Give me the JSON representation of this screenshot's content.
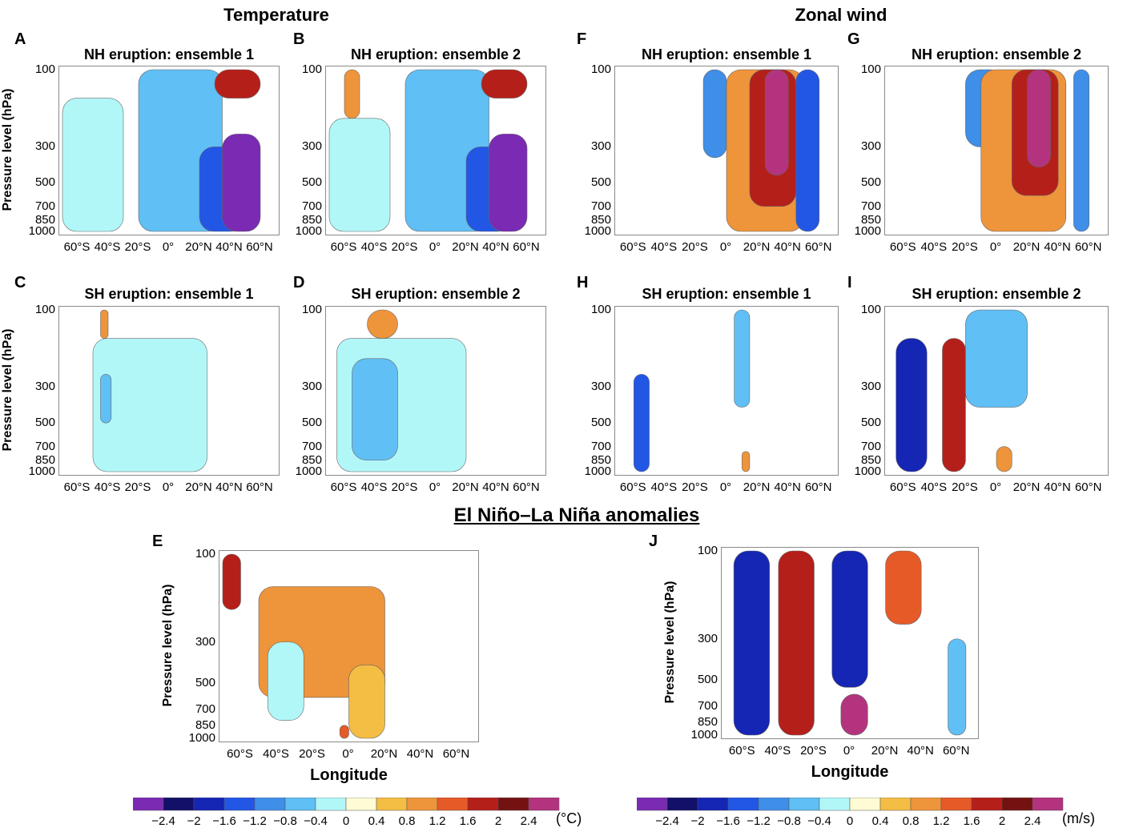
{
  "headings": {
    "temperature": "Temperature",
    "zonal_wind": "Zonal wind",
    "enso": "El Niño–La Niña anomalies"
  },
  "colorbar": {
    "colors": [
      "#7b2ab3",
      "#121068",
      "#1525b4",
      "#2257e6",
      "#3f8ee8",
      "#60bff4",
      "#b2f7f8",
      "#fffbd4",
      "#f4bd43",
      "#ee943a",
      "#e65a28",
      "#b51f1a",
      "#741212",
      "#b3337e"
    ],
    "ticks": [
      "−2.4",
      "−2",
      "−1.6",
      "−1.2",
      "−0.8",
      "−0.4",
      "0",
      "0.4",
      "0.8",
      "1.2",
      "1.6",
      "2",
      "2.4"
    ],
    "unit_temperature": "(°C)",
    "unit_wind": "(m/s)"
  },
  "chart_data": [
    {
      "panel": "A",
      "type": "heatmap",
      "field": "Temperature",
      "title": "NH eruption: ensemble 1",
      "ylabel": "Pressure level (hPa)",
      "yticks": [
        "100",
        "300",
        "500",
        "700",
        "850",
        "1000"
      ],
      "xticks": [
        "60°S",
        "40°S",
        "20°S",
        "0°",
        "20°N",
        "40°N",
        "60°N"
      ],
      "regions": [
        {
          "x": [
            -70,
            -30
          ],
          "p": [
            150,
            1000
          ],
          "value": -0.4
        },
        {
          "x": [
            -20,
            35
          ],
          "p": [
            100,
            1000
          ],
          "value": -0.8
        },
        {
          "x": [
            20,
            50
          ],
          "p": [
            300,
            1000
          ],
          "value": -1.6
        },
        {
          "x": [
            35,
            60
          ],
          "p": [
            250,
            1000
          ],
          "value": -2.4
        },
        {
          "x": [
            30,
            60
          ],
          "p": [
            100,
            150
          ],
          "value": 1.6
        }
      ]
    },
    {
      "panel": "B",
      "type": "heatmap",
      "field": "Temperature",
      "title": "NH eruption: ensemble 2",
      "ylabel": "",
      "yticks": [
        "100",
        "300",
        "500",
        "700",
        "850",
        "1000"
      ],
      "xticks": [
        "60°S",
        "40°S",
        "20°S",
        "0°",
        "20°N",
        "40°N",
        "60°N"
      ],
      "regions": [
        {
          "x": [
            -70,
            -30
          ],
          "p": [
            200,
            1000
          ],
          "value": -0.4
        },
        {
          "x": [
            -20,
            35
          ],
          "p": [
            100,
            1000
          ],
          "value": -0.8
        },
        {
          "x": [
            20,
            50
          ],
          "p": [
            300,
            1000
          ],
          "value": -1.6
        },
        {
          "x": [
            35,
            60
          ],
          "p": [
            250,
            1000
          ],
          "value": -2.4
        },
        {
          "x": [
            30,
            60
          ],
          "p": [
            100,
            150
          ],
          "value": 1.6
        },
        {
          "x": [
            -60,
            -50
          ],
          "p": [
            100,
            200
          ],
          "value": 0.8
        }
      ]
    },
    {
      "panel": "F",
      "type": "heatmap",
      "field": "Zonal wind",
      "title": "NH eruption: ensemble 1",
      "ylabel": "",
      "yticks": [
        "100",
        "300",
        "500",
        "700",
        "850",
        "1000"
      ],
      "xticks": [
        "60°S",
        "40°S",
        "20°S",
        "0°",
        "20°N",
        "40°N",
        "60°N"
      ],
      "regions": [
        {
          "x": [
            -15,
            0
          ],
          "p": [
            100,
            350
          ],
          "value": -1.2
        },
        {
          "x": [
            0,
            50
          ],
          "p": [
            100,
            1000
          ],
          "value": 0.8
        },
        {
          "x": [
            15,
            45
          ],
          "p": [
            100,
            700
          ],
          "value": 1.6
        },
        {
          "x": [
            25,
            40
          ],
          "p": [
            100,
            450
          ],
          "value": 2.4
        },
        {
          "x": [
            45,
            60
          ],
          "p": [
            100,
            1000
          ],
          "value": -1.6
        }
      ]
    },
    {
      "panel": "G",
      "type": "heatmap",
      "field": "Zonal wind",
      "title": "NH eruption: ensemble 2",
      "ylabel": "",
      "yticks": [
        "100",
        "300",
        "500",
        "700",
        "850",
        "1000"
      ],
      "xticks": [
        "60°S",
        "40°S",
        "20°S",
        "0°",
        "20°N",
        "40°N",
        "60°N"
      ],
      "regions": [
        {
          "x": [
            -20,
            5
          ],
          "p": [
            100,
            300
          ],
          "value": -1.2
        },
        {
          "x": [
            -10,
            45
          ],
          "p": [
            100,
            1000
          ],
          "value": 0.8
        },
        {
          "x": [
            10,
            40
          ],
          "p": [
            100,
            600
          ],
          "value": 1.6
        },
        {
          "x": [
            20,
            35
          ],
          "p": [
            100,
            400
          ],
          "value": 2.4
        },
        {
          "x": [
            50,
            60
          ],
          "p": [
            100,
            1000
          ],
          "value": -1.2
        }
      ]
    },
    {
      "panel": "C",
      "type": "heatmap",
      "field": "Temperature",
      "title": "SH eruption: ensemble 1",
      "ylabel": "Pressure level (hPa)",
      "yticks": [
        "100",
        "300",
        "500",
        "700",
        "850",
        "1000"
      ],
      "xticks": [
        "60°S",
        "40°S",
        "20°S",
        "0°",
        "20°N",
        "40°N",
        "60°N"
      ],
      "regions": [
        {
          "x": [
            -50,
            25
          ],
          "p": [
            150,
            1000
          ],
          "value": -0.4
        },
        {
          "x": [
            -45,
            -38
          ],
          "p": [
            250,
            500
          ],
          "value": -0.8
        },
        {
          "x": [
            -45,
            -40
          ],
          "p": [
            100,
            150
          ],
          "value": 0.8
        }
      ]
    },
    {
      "panel": "D",
      "type": "heatmap",
      "field": "Temperature",
      "title": "SH eruption: ensemble 2",
      "ylabel": "",
      "yticks": [
        "100",
        "300",
        "500",
        "700",
        "850",
        "1000"
      ],
      "xticks": [
        "60°S",
        "40°S",
        "20°S",
        "0°",
        "20°N",
        "40°N",
        "60°N"
      ],
      "regions": [
        {
          "x": [
            -65,
            20
          ],
          "p": [
            150,
            1000
          ],
          "value": -0.4
        },
        {
          "x": [
            -55,
            -25
          ],
          "p": [
            200,
            850
          ],
          "value": -0.8
        },
        {
          "x": [
            -45,
            -25
          ],
          "p": [
            100,
            150
          ],
          "value": 0.8
        }
      ]
    },
    {
      "panel": "H",
      "type": "heatmap",
      "field": "Zonal wind",
      "title": "SH eruption: ensemble 1",
      "ylabel": "",
      "yticks": [
        "100",
        "300",
        "500",
        "700",
        "850",
        "1000"
      ],
      "xticks": [
        "60°S",
        "40°S",
        "20°S",
        "0°",
        "20°N",
        "40°N",
        "60°N"
      ],
      "regions": [
        {
          "x": [
            -60,
            -50
          ],
          "p": [
            250,
            1000
          ],
          "value": -1.6
        },
        {
          "x": [
            5,
            15
          ],
          "p": [
            100,
            400
          ],
          "value": -0.8
        },
        {
          "x": [
            10,
            15
          ],
          "p": [
            750,
            1000
          ],
          "value": 0.8
        }
      ]
    },
    {
      "panel": "I",
      "type": "heatmap",
      "field": "Zonal wind",
      "title": "SH eruption: ensemble 2",
      "ylabel": "",
      "yticks": [
        "100",
        "300",
        "500",
        "700",
        "850",
        "1000"
      ],
      "xticks": [
        "60°S",
        "40°S",
        "20°S",
        "0°",
        "20°N",
        "40°N",
        "60°N"
      ],
      "regions": [
        {
          "x": [
            -65,
            -45
          ],
          "p": [
            150,
            1000
          ],
          "value": -2.0
        },
        {
          "x": [
            -35,
            -20
          ],
          "p": [
            150,
            1000
          ],
          "value": 1.6
        },
        {
          "x": [
            0,
            10
          ],
          "p": [
            700,
            1000
          ],
          "value": 0.8
        },
        {
          "x": [
            -20,
            20
          ],
          "p": [
            100,
            400
          ],
          "value": -0.8
        }
      ]
    },
    {
      "panel": "E",
      "type": "heatmap",
      "field": "Temperature",
      "title": "",
      "ylabel": "Pressure level (hPa)",
      "xlabel": "Longitude",
      "yticks": [
        "100",
        "300",
        "500",
        "700",
        "850",
        "1000"
      ],
      "xticks": [
        "60°S",
        "40°S",
        "20°S",
        "0°",
        "20°N",
        "40°N",
        "60°N"
      ],
      "regions": [
        {
          "x": [
            -70,
            -60
          ],
          "p": [
            100,
            200
          ],
          "value": 1.6
        },
        {
          "x": [
            -50,
            20
          ],
          "p": [
            150,
            600
          ],
          "value": 0.8
        },
        {
          "x": [
            -45,
            -25
          ],
          "p": [
            300,
            800
          ],
          "value": -0.4
        },
        {
          "x": [
            0,
            20
          ],
          "p": [
            400,
            1000
          ],
          "value": 0.4
        },
        {
          "x": [
            -5,
            0
          ],
          "p": [
            850,
            1000
          ],
          "value": 1.2
        }
      ]
    },
    {
      "panel": "J",
      "type": "heatmap",
      "field": "Zonal wind",
      "title": "",
      "ylabel": "Pressure level (hPa)",
      "xlabel": "Longitude",
      "yticks": [
        "100",
        "300",
        "500",
        "700",
        "850",
        "1000"
      ],
      "xticks": [
        "60°S",
        "40°S",
        "20°S",
        "0°",
        "20°N",
        "40°N",
        "60°N"
      ],
      "regions": [
        {
          "x": [
            -65,
            -45
          ],
          "p": [
            100,
            1000
          ],
          "value": -2.0
        },
        {
          "x": [
            -40,
            -20
          ],
          "p": [
            100,
            1000
          ],
          "value": 1.6
        },
        {
          "x": [
            -10,
            10
          ],
          "p": [
            100,
            550
          ],
          "value": -2.0
        },
        {
          "x": [
            -5,
            10
          ],
          "p": [
            600,
            1000
          ],
          "value": 2.4
        },
        {
          "x": [
            20,
            40
          ],
          "p": [
            100,
            250
          ],
          "value": 1.2
        },
        {
          "x": [
            55,
            65
          ],
          "p": [
            300,
            1000
          ],
          "value": -0.8
        }
      ]
    }
  ]
}
